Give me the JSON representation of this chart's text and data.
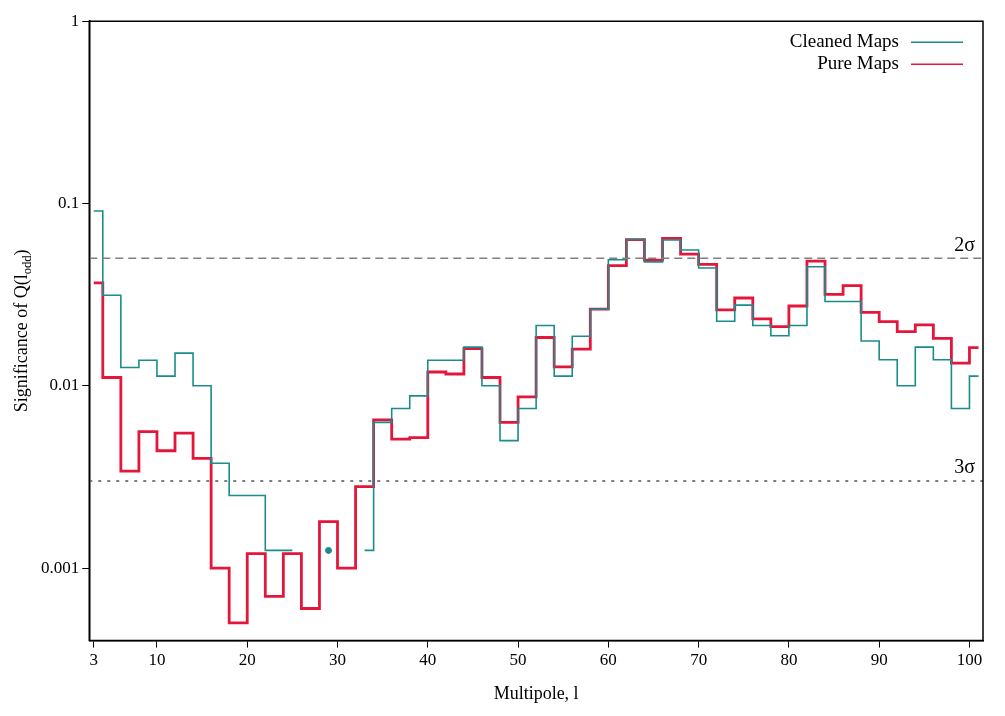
{
  "chart_data": {
    "type": "step",
    "xlabel": "Multipole, l",
    "ylabel": "Significance of Q(l$_{odd}$)",
    "x": [
      3,
      5,
      7,
      9,
      11,
      13,
      15,
      17,
      19,
      21,
      23,
      25,
      27,
      29,
      31,
      33,
      35,
      37,
      39,
      41,
      43,
      45,
      47,
      49,
      51,
      53,
      55,
      57,
      59,
      61,
      63,
      65,
      67,
      69,
      71,
      73,
      75,
      77,
      79,
      81,
      83,
      85,
      87,
      89,
      91,
      93,
      95,
      97,
      99,
      101
    ],
    "series": [
      {
        "name": "Cleaned Maps",
        "color": "#1a8c8c",
        "values": [
          0.091,
          0.0314,
          0.0126,
          0.0138,
          0.0113,
          0.0151,
          0.01,
          0.00376,
          0.0025,
          0.0025,
          0.00125,
          0.00125,
          null,
          0.00125,
          null,
          0.00125,
          0.0063,
          0.0075,
          0.0088,
          0.0138,
          0.0138,
          0.0163,
          0.01,
          0.005,
          0.0075,
          0.0214,
          0.0113,
          0.0187,
          0.0263,
          0.0491,
          0.0634,
          0.0478,
          0.063,
          0.0556,
          0.0443,
          0.0226,
          0.0277,
          0.0214,
          0.0188,
          0.0214,
          0.045,
          0.029,
          0.029,
          0.0176,
          0.0139,
          0.01,
          0.0163,
          0.0139,
          0.0075,
          0.0113
        ]
      },
      {
        "name": "Pure Maps",
        "color": "#e4163a",
        "values": [
          0.0367,
          0.0111,
          0.0034,
          0.0056,
          0.0044,
          0.0055,
          0.004,
          0.001,
          0.0005,
          0.0012,
          0.0007,
          0.0012,
          0.0006,
          0.0018,
          0.001,
          0.0028,
          0.0065,
          0.0051,
          0.0052,
          0.0119,
          0.0116,
          0.016,
          0.0111,
          0.0063,
          0.0087,
          0.0184,
          0.0127,
          0.0159,
          0.0263,
          0.0456,
          0.0634,
          0.0489,
          0.0643,
          0.0527,
          0.0463,
          0.0261,
          0.0303,
          0.0233,
          0.0211,
          0.0274,
          0.0483,
          0.0317,
          0.0354,
          0.0253,
          0.0225,
          0.0198,
          0.0216,
          0.0182,
          0.0133,
          0.0162
        ]
      }
    ],
    "xlim": [
      2.5,
      101.5
    ],
    "xticks": [
      3,
      10,
      20,
      30,
      40,
      50,
      60,
      70,
      80,
      90,
      100
    ],
    "ylim": [
      0.0004,
      1
    ],
    "yticks": [
      1,
      0.1,
      0.01,
      0.001
    ],
    "log": "y",
    "ref_lines": [
      {
        "axis": "y",
        "value": 0.05,
        "label": "2σ",
        "color": "#808080",
        "line_style": "dashed"
      },
      {
        "axis": "y",
        "value": 0.003,
        "label": "3σ",
        "color": "#555555",
        "line_style": "dotted"
      }
    ],
    "legend": "top right",
    "grid": false
  }
}
